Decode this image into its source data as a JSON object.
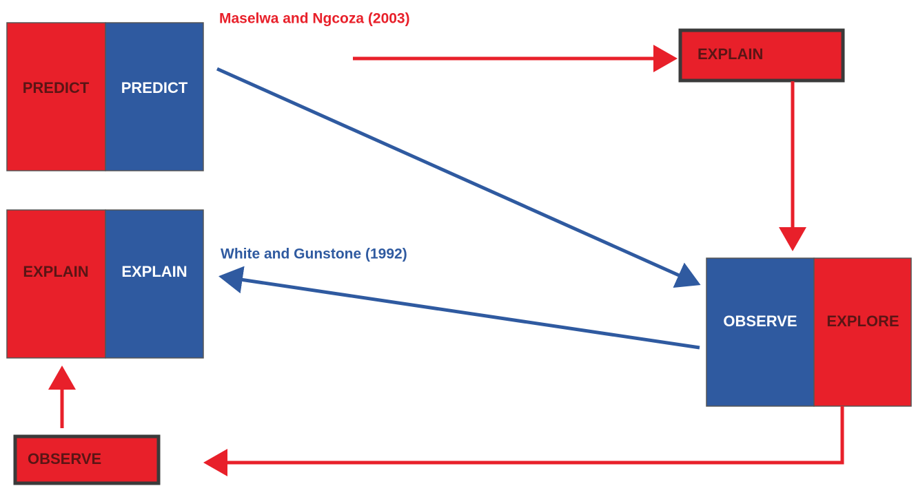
{
  "references": {
    "red": "Maselwa and Ngcoza (2003)",
    "blue": "White and Gunstone (1992)"
  },
  "nodes": [
    {
      "label": "PREDICT"
    },
    {
      "label": "PREDICT"
    },
    {
      "label": "EXPLAIN"
    },
    {
      "label": "EXPLAIN"
    },
    {
      "label": "EXPLAIN"
    },
    {
      "label": "OBSERVE"
    },
    {
      "label": "EXPLORE"
    },
    {
      "label": "OBSERVE"
    }
  ]
}
